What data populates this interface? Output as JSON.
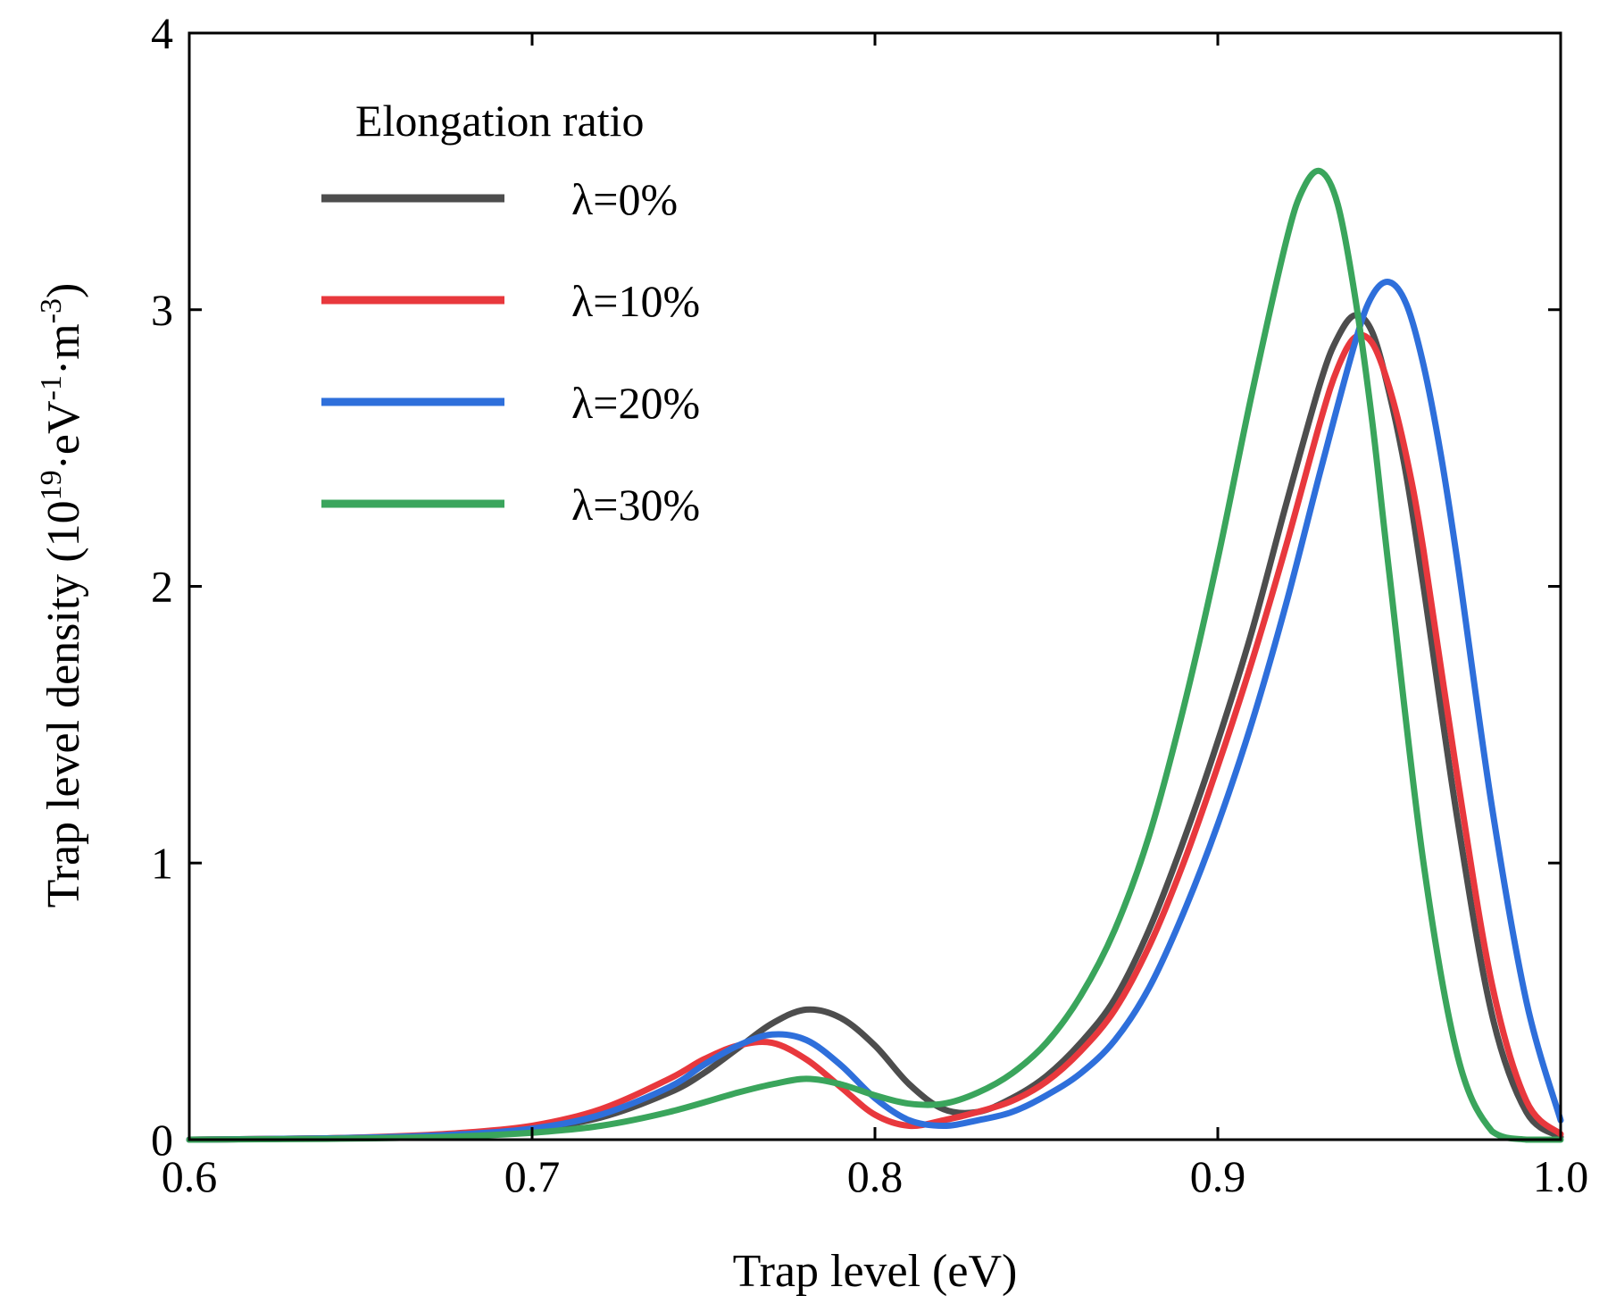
{
  "chart_data": {
    "type": "line",
    "title": "",
    "xlabel": "Trap level (eV)",
    "ylabel": {
      "prefix": "Trap level density (10",
      "sup1": "19",
      "mid1": "·eV",
      "sup2": "-1",
      "mid2": "·m",
      "sup3": "-3",
      "suffix": ")"
    },
    "xlim": [
      0.6,
      1.0
    ],
    "ylim": [
      0,
      4
    ],
    "xticks": [
      "0.6",
      "0.7",
      "0.8",
      "0.9",
      "1.0"
    ],
    "yticks": [
      "0",
      "1",
      "2",
      "3",
      "4"
    ],
    "grid": false,
    "legend": {
      "title": "Elongation ratio",
      "placement": "top-left"
    },
    "series": [
      {
        "name": "λ=0%",
        "color": "#4d4d4d",
        "x": [
          0.6,
          0.64,
          0.66,
          0.68,
          0.7,
          0.72,
          0.74,
          0.75,
          0.76,
          0.77,
          0.78,
          0.79,
          0.8,
          0.81,
          0.82,
          0.83,
          0.84,
          0.85,
          0.86,
          0.87,
          0.88,
          0.89,
          0.9,
          0.91,
          0.92,
          0.93,
          0.935,
          0.94,
          0.945,
          0.95,
          0.955,
          0.96,
          0.97,
          0.98,
          0.99,
          1.0
        ],
        "y": [
          0.0,
          0.005,
          0.01,
          0.02,
          0.04,
          0.08,
          0.17,
          0.24,
          0.33,
          0.42,
          0.47,
          0.44,
          0.34,
          0.2,
          0.11,
          0.1,
          0.15,
          0.23,
          0.35,
          0.51,
          0.76,
          1.08,
          1.44,
          1.84,
          2.3,
          2.74,
          2.9,
          2.98,
          2.92,
          2.7,
          2.4,
          2.0,
          1.15,
          0.45,
          0.1,
          0.01
        ]
      },
      {
        "name": "λ=10%",
        "color": "#e8383d",
        "x": [
          0.6,
          0.64,
          0.66,
          0.68,
          0.7,
          0.72,
          0.74,
          0.75,
          0.76,
          0.77,
          0.78,
          0.79,
          0.8,
          0.81,
          0.82,
          0.83,
          0.84,
          0.85,
          0.86,
          0.87,
          0.88,
          0.89,
          0.9,
          0.91,
          0.92,
          0.93,
          0.935,
          0.94,
          0.945,
          0.95,
          0.955,
          0.96,
          0.97,
          0.98,
          0.99,
          1.0
        ],
        "y": [
          0.0,
          0.005,
          0.012,
          0.025,
          0.05,
          0.11,
          0.22,
          0.29,
          0.34,
          0.35,
          0.29,
          0.19,
          0.09,
          0.05,
          0.07,
          0.1,
          0.14,
          0.21,
          0.32,
          0.47,
          0.7,
          1.0,
          1.35,
          1.73,
          2.15,
          2.6,
          2.79,
          2.9,
          2.88,
          2.72,
          2.47,
          2.13,
          1.3,
          0.56,
          0.14,
          0.02
        ]
      },
      {
        "name": "λ=20%",
        "color": "#2e6fdb",
        "x": [
          0.6,
          0.64,
          0.66,
          0.68,
          0.7,
          0.72,
          0.74,
          0.75,
          0.76,
          0.77,
          0.78,
          0.79,
          0.8,
          0.81,
          0.82,
          0.83,
          0.84,
          0.85,
          0.86,
          0.87,
          0.88,
          0.89,
          0.9,
          0.91,
          0.92,
          0.93,
          0.94,
          0.945,
          0.95,
          0.955,
          0.96,
          0.965,
          0.97,
          0.98,
          0.99,
          1.0
        ],
        "y": [
          0.0,
          0.005,
          0.01,
          0.02,
          0.04,
          0.09,
          0.19,
          0.27,
          0.34,
          0.38,
          0.36,
          0.27,
          0.15,
          0.07,
          0.05,
          0.07,
          0.1,
          0.16,
          0.24,
          0.36,
          0.55,
          0.82,
          1.14,
          1.51,
          1.94,
          2.42,
          2.88,
          3.05,
          3.1,
          3.02,
          2.8,
          2.48,
          2.08,
          1.2,
          0.5,
          0.07
        ]
      },
      {
        "name": "λ=30%",
        "color": "#3aa55c",
        "x": [
          0.6,
          0.64,
          0.66,
          0.68,
          0.7,
          0.72,
          0.74,
          0.76,
          0.77,
          0.78,
          0.79,
          0.8,
          0.81,
          0.82,
          0.83,
          0.84,
          0.85,
          0.86,
          0.87,
          0.88,
          0.89,
          0.9,
          0.91,
          0.92,
          0.925,
          0.93,
          0.935,
          0.94,
          0.945,
          0.95,
          0.96,
          0.97,
          0.98,
          0.99,
          1.0
        ],
        "y": [
          0.0,
          0.003,
          0.006,
          0.012,
          0.025,
          0.05,
          0.1,
          0.17,
          0.2,
          0.22,
          0.2,
          0.16,
          0.13,
          0.13,
          0.17,
          0.24,
          0.35,
          0.52,
          0.76,
          1.1,
          1.56,
          2.1,
          2.7,
          3.25,
          3.44,
          3.5,
          3.38,
          3.05,
          2.6,
          2.05,
          1.0,
          0.3,
          0.03,
          0.0,
          0.0
        ]
      }
    ]
  }
}
